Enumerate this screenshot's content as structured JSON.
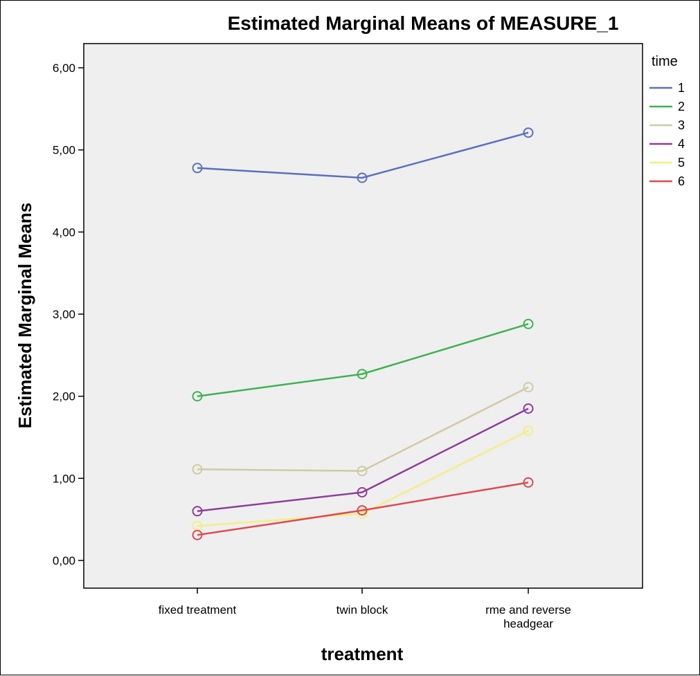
{
  "chart_data": {
    "type": "line",
    "title": "Estimated Marginal Means of MEASURE_1",
    "xlabel": "treatment",
    "ylabel": "Estimated Marginal Means",
    "categories": [
      [
        "fixed treatment"
      ],
      [
        "twin block"
      ],
      [
        "rme and reverse",
        "headgear"
      ]
    ],
    "ylim": [
      -0.3,
      6.3
    ],
    "yticks": [
      "0,00",
      "1,00",
      "2,00",
      "3,00",
      "4,00",
      "5,00",
      "6,00"
    ],
    "ytick_values": [
      0,
      1,
      2,
      3,
      4,
      5,
      6
    ],
    "grid": false,
    "legend": {
      "title": "time",
      "placement": "right"
    },
    "series": [
      {
        "name": "1",
        "color": "#5a6fbf",
        "values": [
          4.78,
          4.66,
          5.21
        ]
      },
      {
        "name": "2",
        "color": "#3fb24f",
        "values": [
          2.0,
          2.27,
          2.88
        ]
      },
      {
        "name": "3",
        "color": "#cfcba0",
        "values": [
          1.11,
          1.09,
          2.11
        ]
      },
      {
        "name": "4",
        "color": "#8e3d9c",
        "values": [
          0.6,
          0.83,
          1.85
        ]
      },
      {
        "name": "5",
        "color": "#f2ef82",
        "values": [
          0.42,
          0.57,
          1.58
        ]
      },
      {
        "name": "6",
        "color": "#e2484e",
        "values": [
          0.31,
          0.61,
          0.95
        ]
      }
    ]
  }
}
